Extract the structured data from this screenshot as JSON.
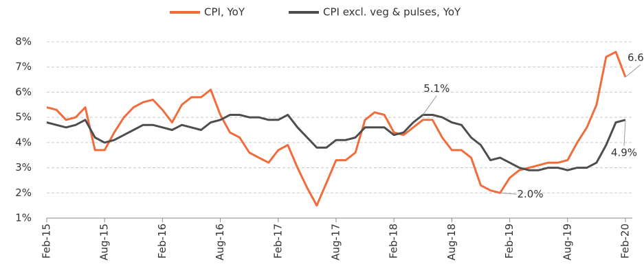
{
  "chart_data": {
    "type": "line",
    "categories": [
      "Feb-15",
      null,
      null,
      null,
      null,
      null,
      "Aug-15",
      null,
      null,
      null,
      null,
      null,
      "Feb-16",
      null,
      null,
      null,
      null,
      null,
      "Aug-16",
      null,
      null,
      null,
      null,
      null,
      "Feb-17",
      null,
      null,
      null,
      null,
      null,
      "Aug-17",
      null,
      null,
      null,
      null,
      null,
      "Feb-18",
      null,
      null,
      null,
      null,
      null,
      "Aug-18",
      null,
      null,
      null,
      null,
      null,
      "Feb-19",
      null,
      null,
      null,
      null,
      null,
      "Aug-19",
      null,
      null,
      null,
      null,
      null,
      "Feb-20"
    ],
    "series": [
      {
        "name": "CPI, YoY",
        "color": "#f26b3a",
        "values": [
          5.4,
          5.3,
          4.9,
          5.0,
          5.4,
          3.7,
          3.7,
          4.4,
          5.0,
          5.4,
          5.6,
          5.7,
          5.3,
          4.8,
          5.5,
          5.8,
          5.8,
          6.1,
          5.1,
          4.4,
          4.2,
          3.6,
          3.4,
          3.2,
          3.7,
          3.9,
          3.0,
          2.2,
          1.5,
          2.4,
          3.3,
          3.3,
          3.6,
          4.9,
          5.2,
          5.1,
          4.4,
          4.3,
          4.6,
          4.9,
          4.9,
          4.2,
          3.7,
          3.7,
          3.4,
          2.3,
          2.1,
          2.0,
          2.6,
          2.9,
          3.0,
          3.1,
          3.2,
          3.2,
          3.3,
          4.0,
          4.6,
          5.5,
          7.4,
          7.6,
          6.6
        ],
        "value_labels": [
          null,
          null,
          null,
          null,
          null,
          null,
          null,
          null,
          null,
          null,
          null,
          null,
          null,
          null,
          null,
          null,
          null,
          null,
          null,
          null,
          null,
          null,
          null,
          null,
          null,
          null,
          null,
          null,
          null,
          null,
          null,
          null,
          null,
          null,
          null,
          null,
          null,
          null,
          null,
          null,
          null,
          null,
          null,
          null,
          null,
          null,
          null,
          "2.0%",
          null,
          null,
          null,
          null,
          null,
          null,
          null,
          null,
          null,
          null,
          null,
          null,
          "6.6%"
        ]
      },
      {
        "name": "CPI excl. veg & pulses, YoY",
        "color": "#4d4d4d",
        "values": [
          4.8,
          4.7,
          4.6,
          4.7,
          4.9,
          4.2,
          4.0,
          4.1,
          4.3,
          4.5,
          4.7,
          4.7,
          4.6,
          4.5,
          4.7,
          4.6,
          4.5,
          4.8,
          4.9,
          5.1,
          5.1,
          5.0,
          5.0,
          4.9,
          4.9,
          5.1,
          4.6,
          4.2,
          3.8,
          3.8,
          4.1,
          4.1,
          4.2,
          4.6,
          4.6,
          4.6,
          4.3,
          4.4,
          4.8,
          5.1,
          5.1,
          5.0,
          4.8,
          4.7,
          4.2,
          3.9,
          3.3,
          3.4,
          3.2,
          3.0,
          2.9,
          2.9,
          3.0,
          3.0,
          2.9,
          3.0,
          3.0,
          3.2,
          3.9,
          4.8,
          4.9
        ],
        "value_labels": [
          null,
          null,
          null,
          null,
          null,
          null,
          null,
          null,
          null,
          null,
          null,
          null,
          null,
          null,
          null,
          null,
          null,
          null,
          null,
          null,
          null,
          null,
          null,
          null,
          null,
          null,
          null,
          null,
          null,
          null,
          null,
          null,
          null,
          null,
          null,
          null,
          null,
          null,
          null,
          "5.1%",
          null,
          null,
          null,
          null,
          null,
          null,
          null,
          null,
          null,
          null,
          null,
          null,
          null,
          null,
          null,
          null,
          null,
          null,
          null,
          null,
          "4.9%"
        ]
      }
    ],
    "ylim": [
      1,
      8
    ],
    "yticks": [
      {
        "value": 1,
        "label": "1%"
      },
      {
        "value": 2,
        "label": "2%"
      },
      {
        "value": 3,
        "label": "3%"
      },
      {
        "value": 4,
        "label": "4%"
      },
      {
        "value": 5,
        "label": "5%"
      },
      {
        "value": 6,
        "label": "6%"
      },
      {
        "value": 7,
        "label": "7%"
      },
      {
        "value": 8,
        "label": "8%"
      }
    ],
    "grid": true,
    "legend": "top"
  }
}
